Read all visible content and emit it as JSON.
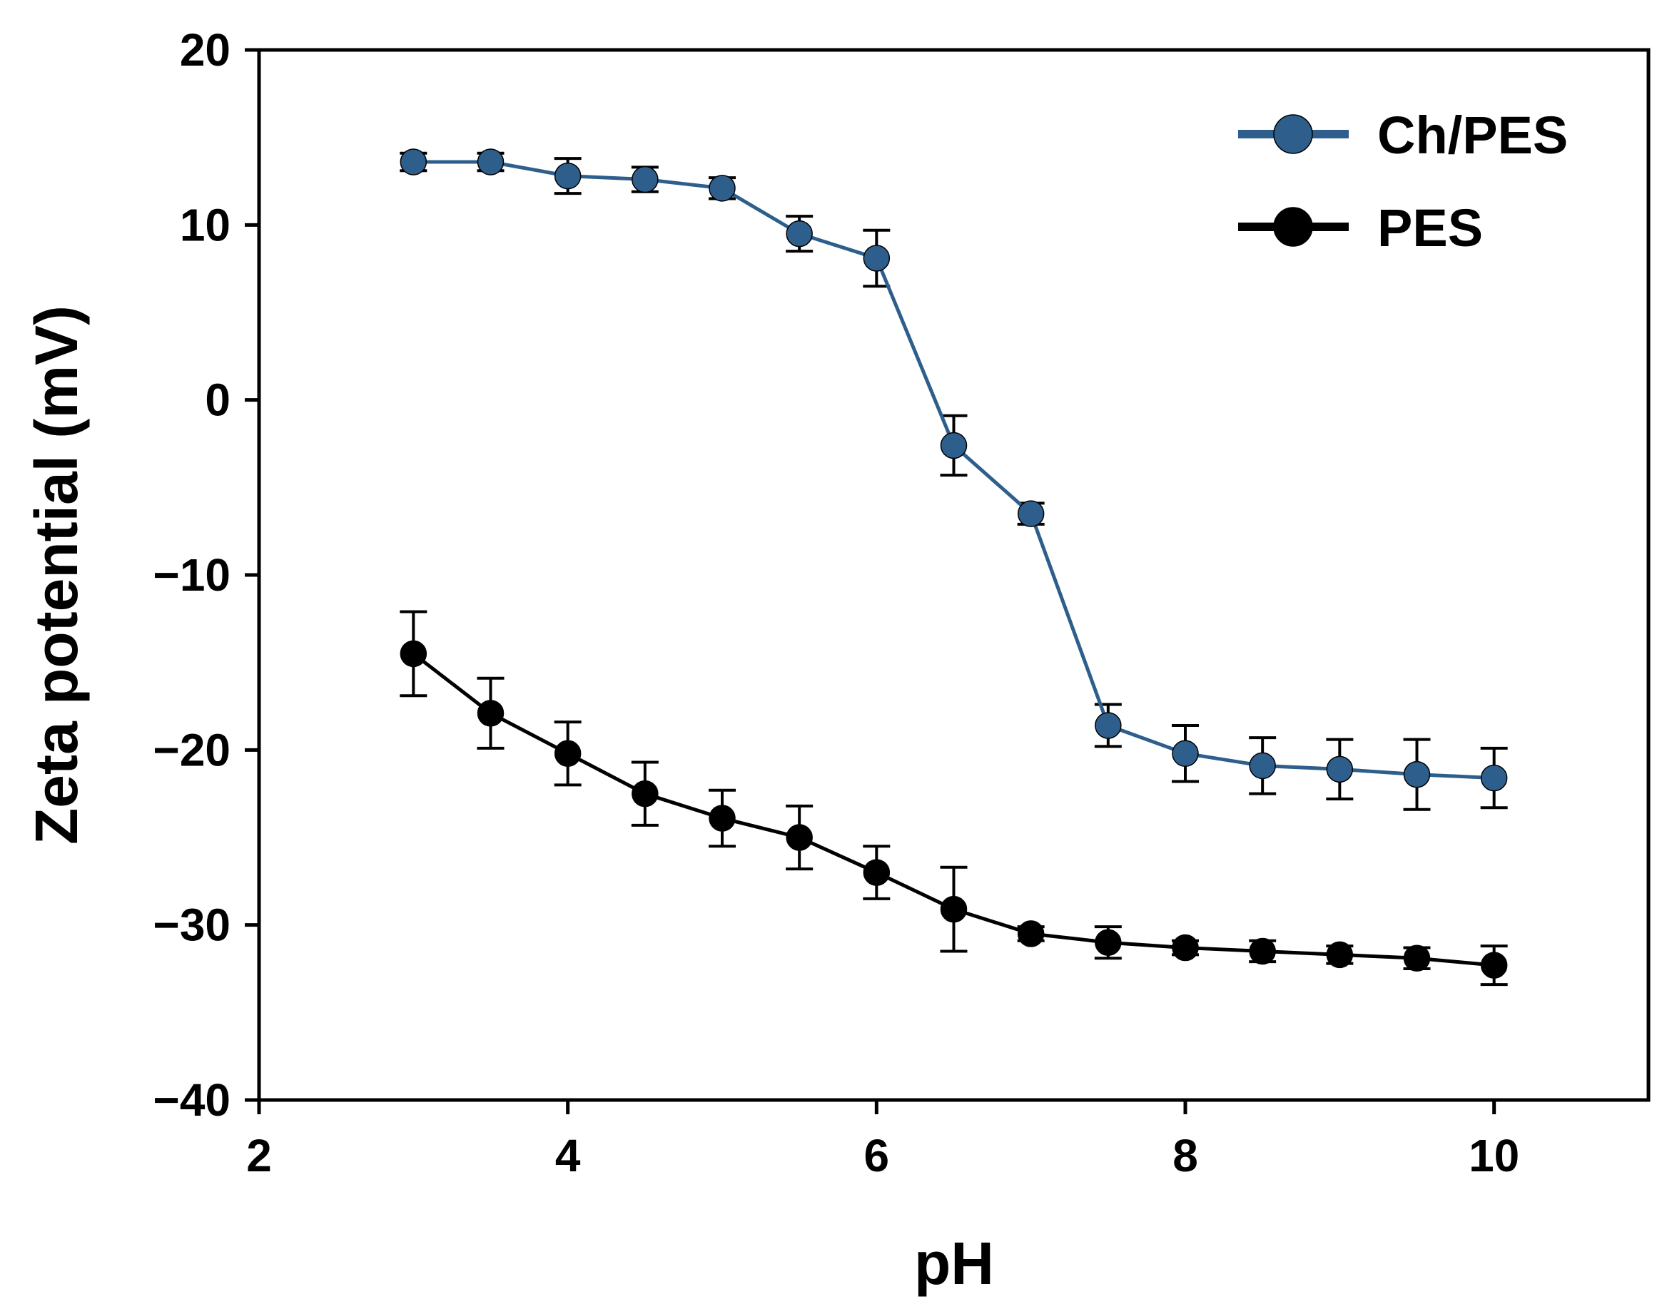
{
  "chart_data": {
    "type": "line",
    "title": "",
    "xlabel": "pH",
    "ylabel": "Zeta potential (mV)",
    "xlim": [
      2,
      11
    ],
    "ylim": [
      -40,
      20
    ],
    "xticks": [
      2,
      4,
      6,
      8,
      10
    ],
    "xtick_labels": [
      "2",
      "4",
      "6",
      "8",
      "10"
    ],
    "yticks": [
      20,
      10,
      0,
      -10,
      -20,
      -30,
      -40
    ],
    "ytick_labels": [
      "20",
      "10",
      "0",
      "−10",
      "−20",
      "−30",
      "−40"
    ],
    "grid": false,
    "legend_position": "top-right",
    "series": [
      {
        "name": "Ch/PES",
        "color": "#2e5f8c",
        "x": [
          3,
          3.5,
          4,
          4.5,
          5,
          5.5,
          6,
          6.5,
          7,
          7.5,
          8,
          8.5,
          9,
          9.5,
          10
        ],
        "y": [
          13.6,
          13.6,
          12.8,
          12.6,
          12.1,
          9.5,
          8.1,
          -2.6,
          -6.5,
          -18.6,
          -20.2,
          -20.9,
          -21.1,
          -21.4,
          -21.6
        ],
        "err": [
          0.5,
          0.5,
          1.0,
          0.7,
          0.6,
          1.0,
          1.6,
          1.7,
          0.6,
          1.2,
          1.6,
          1.6,
          1.7,
          2.0,
          1.7
        ]
      },
      {
        "name": "PES",
        "color": "#000000",
        "x": [
          3,
          3.5,
          4,
          4.5,
          5,
          5.5,
          6,
          6.5,
          7,
          7.5,
          8,
          8.5,
          9,
          9.5,
          10
        ],
        "y": [
          -14.5,
          -17.9,
          -20.2,
          -22.5,
          -23.9,
          -25.0,
          -27.0,
          -29.1,
          -30.5,
          -31.0,
          -31.3,
          -31.5,
          -31.7,
          -31.9,
          -32.3
        ],
        "err": [
          2.4,
          2.0,
          1.8,
          1.8,
          1.6,
          1.8,
          1.5,
          2.4,
          0.4,
          0.9,
          0.4,
          0.6,
          0.5,
          0.6,
          1.1
        ]
      }
    ]
  }
}
